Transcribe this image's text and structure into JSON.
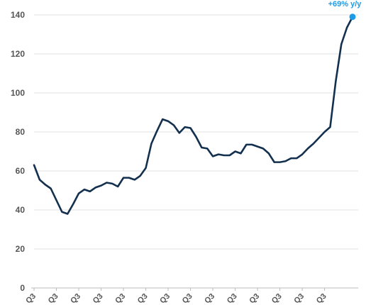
{
  "chart_data": {
    "type": "line",
    "title": "",
    "xlabel": "",
    "ylabel": "",
    "ylim": [
      0,
      140
    ],
    "yticks": [
      0,
      20,
      40,
      60,
      80,
      100,
      120,
      140
    ],
    "ytick_labels": [
      "0",
      "20",
      "40",
      "60",
      "80",
      "100",
      "120",
      "140"
    ],
    "grid": "horizontal",
    "xtick_labels": [
      "Q3",
      "Q3",
      "Q3",
      "Q3",
      "Q3",
      "Q3",
      "Q3",
      "Q3",
      "Q3",
      "Q3",
      "Q3",
      "Q3",
      "Q3",
      "Q3"
    ],
    "xtick_index": [
      0,
      4,
      8,
      12,
      16,
      20,
      24,
      28,
      32,
      36,
      40,
      44,
      48,
      52
    ],
    "series": [
      {
        "values": [
          63,
          55.5,
          53,
          51,
          45,
          39,
          38,
          43,
          48.5,
          50.5,
          49.5,
          51.5,
          52.5,
          54,
          53.5,
          52,
          56.5,
          56.5,
          55.5,
          57.5,
          61.5,
          74,
          80.5,
          86.5,
          85.5,
          83.5,
          79.5,
          82.5,
          82,
          77.5,
          72,
          71.5,
          67.5,
          68.5,
          68,
          68,
          70,
          69,
          73.5,
          73.5,
          72.5,
          71.5,
          69,
          64.5,
          64.5,
          65,
          66.5,
          66.5,
          68.5,
          71.5,
          74,
          77,
          80,
          82.5,
          106,
          125,
          133.5,
          139
        ]
      }
    ],
    "annotation": {
      "text": "+69% y/y",
      "value": 139
    },
    "colors": {
      "line": "#13304e",
      "marker": "#1e9be8",
      "annotation": "#1e9be8",
      "grid": "#e2e2e2",
      "axis": "#bbbbbb",
      "tick_label": "#555555"
    }
  }
}
